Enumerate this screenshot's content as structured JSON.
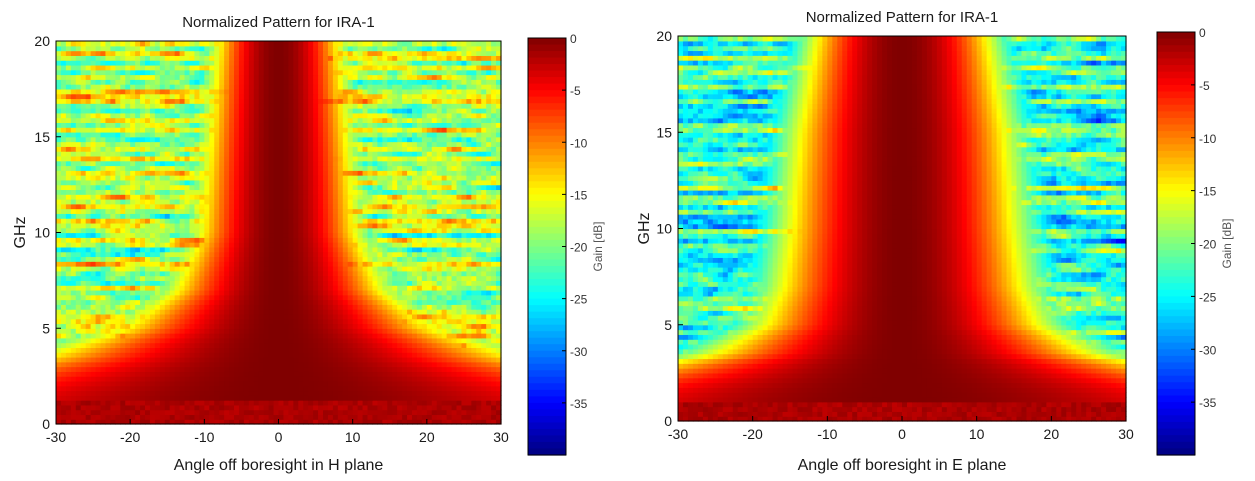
{
  "colors": {
    "colormap": "jet",
    "colormap_stops": [
      "#00008f",
      "#0000ff",
      "#00ffff",
      "#ffff00",
      "#ff0000",
      "#800000"
    ],
    "axis": "#000000",
    "background": "#ffffff"
  },
  "chart_data": [
    {
      "type": "heatmap",
      "title": "Normalized Pattern for IRA-1",
      "xlabel": "Angle off boresight in H plane",
      "ylabel": "GHz",
      "xlim": [
        -30,
        30
      ],
      "ylim": [
        0,
        20
      ],
      "x_ticks": [
        "-30",
        "-20",
        "-10",
        "0",
        "10",
        "20",
        "30"
      ],
      "y_ticks": [
        "0",
        "5",
        "10",
        "15",
        "20"
      ],
      "colorbar": {
        "label": "Gain [dB]",
        "range": [
          -40,
          0
        ],
        "ticks": [
          "0",
          "-5",
          "-10",
          "-15",
          "-20",
          "-25",
          "-30",
          "-35"
        ]
      },
      "pattern_model": {
        "peak_at_angle": 0,
        "lowband_fully_hot_below_ghz": 1.2,
        "beamwidth_deg": [
          [
            0.7,
            30
          ],
          [
            1.5,
            27
          ],
          [
            2.5,
            20
          ],
          [
            3.5,
            14
          ],
          [
            5,
            9
          ],
          [
            7,
            6
          ],
          [
            10,
            4.5
          ],
          [
            15,
            4
          ],
          [
            20,
            3.5
          ]
        ],
        "sidelobe_level_db": -18,
        "sidelobe_variation_db": 7
      }
    },
    {
      "type": "heatmap",
      "title": "Normalized Pattern for IRA-1",
      "xlabel": "Angle off boresight in E plane",
      "ylabel": "GHz",
      "xlim": [
        -30,
        30
      ],
      "ylim": [
        0,
        20
      ],
      "x_ticks": [
        "-30",
        "-20",
        "-10",
        "0",
        "10",
        "20",
        "30"
      ],
      "y_ticks": [
        "0",
        "5",
        "10",
        "15",
        "20"
      ],
      "colorbar": {
        "label": "Gain [dB]",
        "range": [
          -40,
          0
        ],
        "ticks": [
          "0",
          "-5",
          "-10",
          "-15",
          "-20",
          "-25",
          "-30",
          "-35"
        ]
      },
      "pattern_model": {
        "peak_at_angle": 0,
        "lowband_fully_hot_below_ghz": 0.9,
        "beamwidth_deg": [
          [
            0.7,
            30
          ],
          [
            1.5,
            25
          ],
          [
            2.5,
            17
          ],
          [
            3.5,
            11
          ],
          [
            5,
            8
          ],
          [
            7,
            7
          ],
          [
            10,
            6.5
          ],
          [
            15,
            6
          ],
          [
            20,
            5
          ]
        ],
        "sidelobe_level_db": -23,
        "sidelobe_variation_db": 7
      }
    }
  ]
}
